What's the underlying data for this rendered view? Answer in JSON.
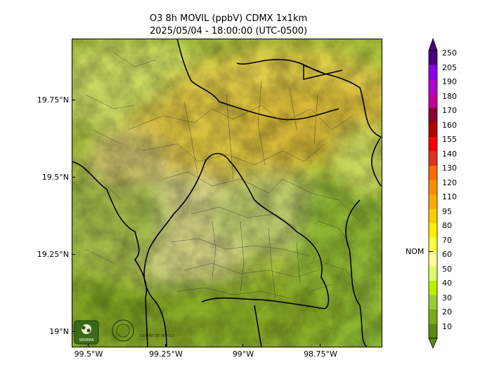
{
  "title_line1": "O3 8h MOVIL (ppbV) CDMX 1x1km",
  "title_line2": "2025/05/04 - 18:00:00 (UTC-0500)",
  "lat_labels": [
    "19.75°N",
    "19.5°N",
    "19.25°N",
    "19°N"
  ],
  "lon_labels": [
    "99.5°W",
    "99.25°W",
    "99°W",
    "98.75°W"
  ],
  "colorbar": {
    "labels": [
      "250",
      "205",
      "190",
      "180",
      "170",
      "160",
      "155",
      "140",
      "130",
      "120",
      "110",
      "95",
      "80",
      "70",
      "60",
      "50",
      "40",
      "30",
      "20",
      "10"
    ],
    "colors": [
      "#4b0082",
      "#8a00e6",
      "#b000d0",
      "#c0009a",
      "#8b0030",
      "#b00000",
      "#ff0000",
      "#e03020",
      "#ff6a00",
      "#ff8c00",
      "#ffaa00",
      "#ffcc00",
      "#ffee00",
      "#ffff40",
      "#ffff99",
      "#ddff66",
      "#b8f000",
      "#9acd32",
      "#7aaa18",
      "#5a8a10"
    ],
    "nom_label": "NOM",
    "nom_value": "60"
  },
  "logos": {
    "sedema": "SEDEMA",
    "cdmx": "CIUDAD DE MÉXICO"
  }
}
